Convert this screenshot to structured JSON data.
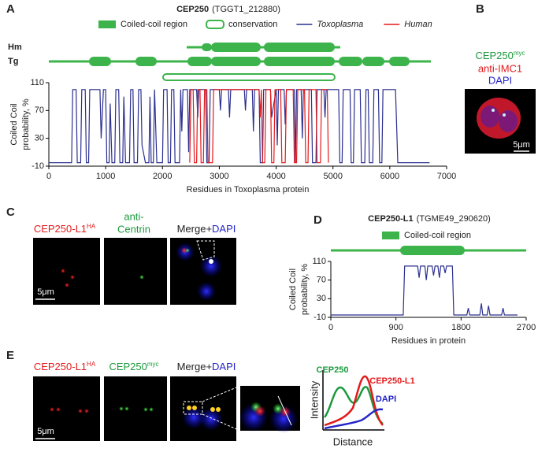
{
  "panel_labels": [
    "A",
    "B",
    "C",
    "D",
    "E"
  ],
  "chart_data": [
    {
      "type": "line",
      "title": "CEP250",
      "subtitle": "(TGGT1_212880)",
      "region_legend": [
        "Coiled-coil region",
        "conservation"
      ],
      "track_labels": [
        "Hm",
        "Tg"
      ],
      "xlabel": "Residues in Toxoplasma protein",
      "ylabel": [
        "Coiled Coil",
        "probability, %"
      ],
      "xlim": [
        0,
        7000
      ],
      "xticks": [
        0,
        1000,
        2000,
        3000,
        4000,
        5000,
        6000,
        7000
      ],
      "ylim": [
        -10,
        110
      ],
      "yticks": [
        -10,
        30,
        70,
        110
      ],
      "series": [
        {
          "name": "Toxoplasma",
          "color": "#2b2f8f",
          "x": [
            0,
            400,
            420,
            480,
            500,
            560,
            580,
            640,
            660,
            700,
            720,
            900,
            920,
            960,
            1000,
            1020,
            1060,
            1080,
            1110,
            1160,
            1180,
            1230,
            1250,
            1300,
            1320,
            1350,
            1420,
            1440,
            1480,
            1500,
            1560,
            1580,
            1620,
            1640,
            1700,
            1760,
            1780,
            1800,
            1840,
            1860,
            1900,
            2000,
            2020,
            2080,
            2100,
            2140,
            2160,
            2200,
            2220,
            2300,
            2320,
            2340,
            2360,
            2440,
            2460,
            2480,
            2600,
            2620,
            2640,
            2760,
            2780,
            2820,
            2840,
            3000,
            3020,
            3040,
            3160,
            3180,
            3200,
            3440,
            3460,
            3480,
            3580,
            3600,
            3620,
            3700,
            3720,
            3760,
            3780,
            3900,
            3920,
            4000,
            4020,
            4040,
            4140,
            4160,
            4180,
            4320,
            4340,
            4360,
            4440,
            4460,
            4480,
            4620,
            4640,
            4700,
            4720,
            4840,
            4860,
            4880,
            5100,
            5120,
            5160,
            5180,
            5300,
            5320,
            5360,
            5380,
            5480,
            5500,
            5560,
            5580,
            5620,
            5640,
            5700,
            5720,
            5800,
            5820,
            5860,
            5880,
            6100,
            6140,
            6700
          ],
          "values": [
            -5,
            -5,
            100,
            100,
            -5,
            -5,
            100,
            100,
            -5,
            -5,
            100,
            100,
            30,
            100,
            100,
            -5,
            -5,
            80,
            -5,
            -5,
            100,
            100,
            -5,
            -5,
            90,
            -5,
            -5,
            100,
            100,
            -5,
            -5,
            100,
            100,
            20,
            -5,
            -5,
            90,
            -5,
            -5,
            100,
            -5,
            -5,
            100,
            100,
            -5,
            -5,
            100,
            100,
            -5,
            -5,
            100,
            40,
            100,
            100,
            10,
            100,
            100,
            60,
            100,
            100,
            -5,
            -5,
            100,
            100,
            70,
            100,
            100,
            60,
            100,
            100,
            70,
            100,
            100,
            40,
            100,
            100,
            -5,
            -5,
            100,
            100,
            60,
            100,
            20,
            100,
            100,
            50,
            100,
            100,
            -5,
            100,
            100,
            30,
            100,
            100,
            -5,
            -5,
            100,
            100,
            60,
            100,
            100,
            -5,
            -5,
            100,
            100,
            -5,
            -5,
            100,
            100,
            -5,
            -5,
            100,
            100,
            -5,
            -5,
            100,
            100,
            -5,
            -5,
            100,
            100,
            -5,
            -5
          ]
        },
        {
          "name": "Human",
          "color": "#e41a1c",
          "x": [
            2480,
            2500,
            2540,
            2560,
            2600,
            2620,
            2660,
            2680,
            2720,
            2740,
            2780,
            2800,
            2880,
            2900,
            3700,
            3720,
            3740,
            3760,
            3800,
            3820,
            3900,
            3920,
            3960,
            3980,
            4080,
            4100,
            4160,
            4180,
            4300,
            4320,
            4360,
            4380,
            4500,
            4520,
            4560,
            4580,
            4700,
            4720,
            4780,
            4800,
            4900,
            4920
          ],
          "values": [
            -5,
            100,
            100,
            -5,
            -5,
            100,
            100,
            -5,
            -5,
            100,
            100,
            -5,
            -5,
            100,
            100,
            60,
            100,
            -5,
            -5,
            100,
            100,
            -5,
            -5,
            100,
            100,
            -5,
            -5,
            100,
            100,
            -5,
            -5,
            100,
            100,
            -5,
            -5,
            100,
            100,
            -5,
            -5,
            100,
            100,
            -5
          ]
        }
      ]
    },
    {
      "type": "line",
      "title": "CEP250-L1",
      "subtitle": "(TGME49_290620)",
      "region_legend": [
        "Coiled-coil region"
      ],
      "xlabel": "Residues in protein",
      "ylabel": [
        "Coiled Coil",
        "probability, %"
      ],
      "xlim": [
        0,
        2700
      ],
      "xticks": [
        0,
        900,
        1800,
        2700
      ],
      "ylim": [
        -10,
        110
      ],
      "yticks": [
        -10,
        30,
        70,
        110
      ],
      "color": "#2b2f8f",
      "x": [
        0,
        1000,
        1020,
        1200,
        1220,
        1240,
        1300,
        1320,
        1340,
        1400,
        1420,
        1440,
        1480,
        1500,
        1520,
        1560,
        1580,
        1600,
        1680,
        1700,
        1880,
        1900,
        1920,
        2060,
        2080,
        2100,
        2160,
        2180,
        2200,
        2360,
        2380,
        2400,
        2580
      ],
      "values": [
        -5,
        -5,
        100,
        100,
        75,
        100,
        100,
        70,
        100,
        100,
        80,
        100,
        100,
        75,
        100,
        100,
        85,
        100,
        100,
        -5,
        -5,
        10,
        -5,
        -5,
        20,
        -5,
        -5,
        15,
        -5,
        -5,
        10,
        -5,
        -5
      ]
    }
  ],
  "panel_b": {
    "channel1": "CEP250",
    "channel1_sup": "myc",
    "channel2": "anti-IMC1",
    "channel3": "DAPI",
    "scale_bar": "5μm"
  },
  "panel_c": {
    "channel1": "CEP250-L1",
    "channel1_sup": "HA",
    "channel2_line1": "anti-",
    "channel2_line2": "Centrin",
    "merge": "Merge+",
    "merge_dapi": "DAPI",
    "scale_bar": "5μm"
  },
  "panel_e": {
    "channel1": "CEP250-L1",
    "channel1_sup": "HA",
    "channel2": "CEP250",
    "channel2_sup": "myc",
    "merge": "Merge+",
    "merge_dapi": "DAPI",
    "scale_bar": "5μm",
    "profile_labels": [
      "CEP250",
      "CEP250-L1",
      "DAPI"
    ],
    "profile_ylabel": "Intensity",
    "profile_xlabel": "Distance"
  }
}
